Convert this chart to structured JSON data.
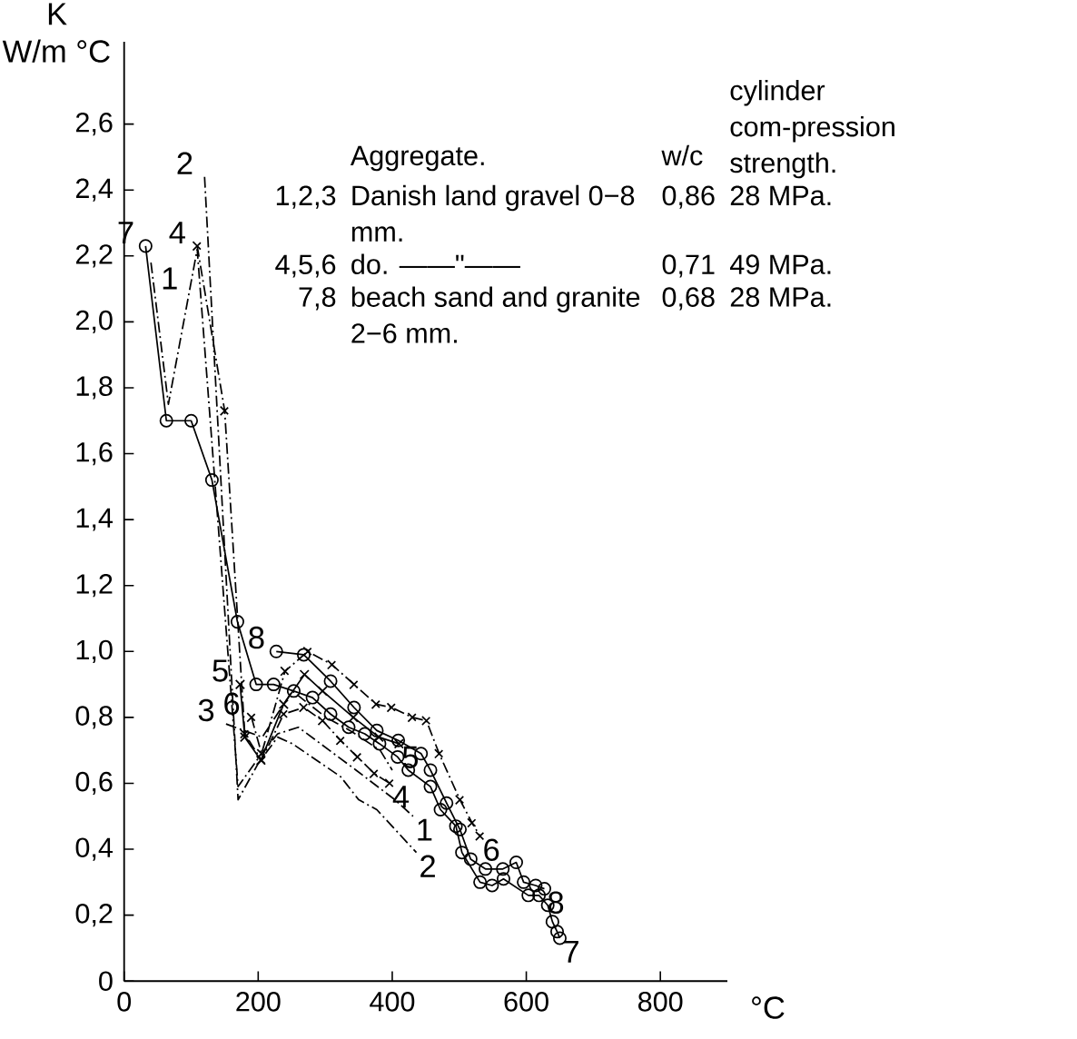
{
  "chart_data": {
    "type": "line",
    "ylabel": "K W/m °C",
    "xlabel": "°C",
    "xlim": [
      0,
      900
    ],
    "xticks": [
      0,
      200,
      400,
      600,
      800
    ],
    "ylim": [
      0,
      2.85
    ],
    "yticks": [
      0,
      {
        "value": 0.2,
        "label": "0,2"
      },
      {
        "value": 0.4,
        "label": "0,4"
      },
      {
        "value": 0.6,
        "label": "0,6"
      },
      {
        "value": 0.8,
        "label": "0,8"
      },
      {
        "value": 1.0,
        "label": "1,0"
      },
      {
        "value": 1.2,
        "label": "1,2"
      },
      {
        "value": 1.4,
        "label": "1,4"
      },
      {
        "value": 1.6,
        "label": "1,6"
      },
      {
        "value": 1.8,
        "label": "1,8"
      },
      {
        "value": 2.0,
        "label": "2,0"
      },
      {
        "value": 2.2,
        "label": "2,2"
      },
      {
        "value": 2.4,
        "label": "2,4"
      },
      {
        "value": 2.6,
        "label": "2,6"
      }
    ],
    "grid": false,
    "legend": false,
    "series": [
      {
        "name": "1",
        "color": "#000000",
        "line_style": "dashdot",
        "marker": "none",
        "x": [
          40,
          66,
          109,
          170,
          205,
          229,
          260,
          346,
          404,
          431
        ],
        "values": [
          2.18,
          1.75,
          2.22,
          0.59,
          0.69,
          0.75,
          0.77,
          0.64,
          0.55,
          0.5
        ]
      },
      {
        "name": "2",
        "color": "#000000",
        "line_style": "dashdot",
        "marker": "none",
        "x": [
          120,
          170,
          200,
          229,
          251,
          323,
          350,
          377,
          436
        ],
        "values": [
          2.44,
          0.55,
          0.66,
          0.74,
          0.72,
          0.62,
          0.55,
          0.52,
          0.39
        ]
      },
      {
        "name": "3",
        "color": "#000000",
        "line_style": "dashdot",
        "marker": "none",
        "x": [
          152,
          206,
          251,
          301,
          337,
          382,
          400
        ],
        "values": [
          0.78,
          0.74,
          0.88,
          0.8,
          0.76,
          0.7,
          0.64
        ]
      },
      {
        "name": "4",
        "color": "#000000",
        "line_style": "dashdot",
        "marker": "cross",
        "x": [
          109,
          150,
          180,
          205,
          238,
          268,
          296,
          323,
          348,
          373,
          396
        ],
        "values": [
          2.23,
          1.73,
          0.75,
          0.67,
          0.81,
          0.83,
          0.79,
          0.73,
          0.68,
          0.63,
          0.6
        ]
      },
      {
        "name": "5",
        "color": "#000000",
        "line_style": "solid",
        "marker": "cross",
        "x": [
          173,
          180,
          204,
          238,
          269,
          296,
          342,
          380,
          410
        ],
        "values": [
          0.9,
          0.74,
          0.67,
          0.84,
          0.93,
          0.88,
          0.8,
          0.74,
          0.72
        ]
      },
      {
        "name": "6",
        "color": "#000000",
        "line_style": "dashdot",
        "marker": "cross",
        "x": [
          190,
          205,
          240,
          274,
          310,
          343,
          376,
          399,
          430,
          451,
          470,
          501,
          519,
          531
        ],
        "values": [
          0.8,
          0.69,
          0.94,
          1.0,
          0.96,
          0.9,
          0.84,
          0.83,
          0.8,
          0.79,
          0.69,
          0.55,
          0.48,
          0.44
        ]
      },
      {
        "name": "7",
        "color": "#000000",
        "line_style": "solid",
        "marker": "circle",
        "x": [
          32,
          63,
          100,
          131,
          169,
          197,
          223,
          253,
          281,
          308,
          335,
          359,
          381,
          408,
          424,
          457,
          472,
          495,
          504,
          531,
          549,
          566,
          603,
          619,
          632,
          639,
          646,
          650
        ],
        "values": [
          2.23,
          1.7,
          1.7,
          1.52,
          1.09,
          0.9,
          0.9,
          0.88,
          0.86,
          0.81,
          0.77,
          0.75,
          0.72,
          0.68,
          0.64,
          0.59,
          0.52,
          0.47,
          0.39,
          0.3,
          0.29,
          0.31,
          0.26,
          0.26,
          0.23,
          0.18,
          0.15,
          0.13
        ]
      },
      {
        "name": "8",
        "color": "#000000",
        "line_style": "solid",
        "marker": "circle",
        "x": [
          227,
          268,
          308,
          343,
          377,
          409,
          443,
          457,
          481,
          501,
          517,
          539,
          565,
          585,
          596,
          614,
          627
        ],
        "values": [
          1.0,
          0.99,
          0.91,
          0.83,
          0.76,
          0.73,
          0.69,
          0.64,
          0.54,
          0.46,
          0.37,
          0.34,
          0.34,
          0.36,
          0.3,
          0.29,
          0.28
        ]
      }
    ],
    "annotations": [
      "Aggregate.",
      "w/c",
      "cylinder com-pression strength.",
      "1,2,3",
      "Danish land gravel 0−8 mm.",
      "0,86",
      "28 MPa.",
      "4,5,6",
      "do. ——\"——",
      "0,71",
      "49 MPa.",
      "7,8",
      "beach sand and granite 2−6 mm.",
      "0,68",
      "28 MPa.",
      {
        "text": "1",
        "x": 431,
        "y": 0.5
      },
      {
        "text": "2",
        "x": 436,
        "y": 0.39
      },
      {
        "text": "4",
        "x": 396,
        "y": 0.6
      },
      {
        "text": "5",
        "x": 410,
        "y": 0.72
      },
      {
        "text": "6",
        "x": 531,
        "y": 0.44
      },
      {
        "text": "7",
        "x": 650,
        "y": 0.13
      },
      {
        "text": "8",
        "x": 627,
        "y": 0.28
      }
    ]
  }
}
